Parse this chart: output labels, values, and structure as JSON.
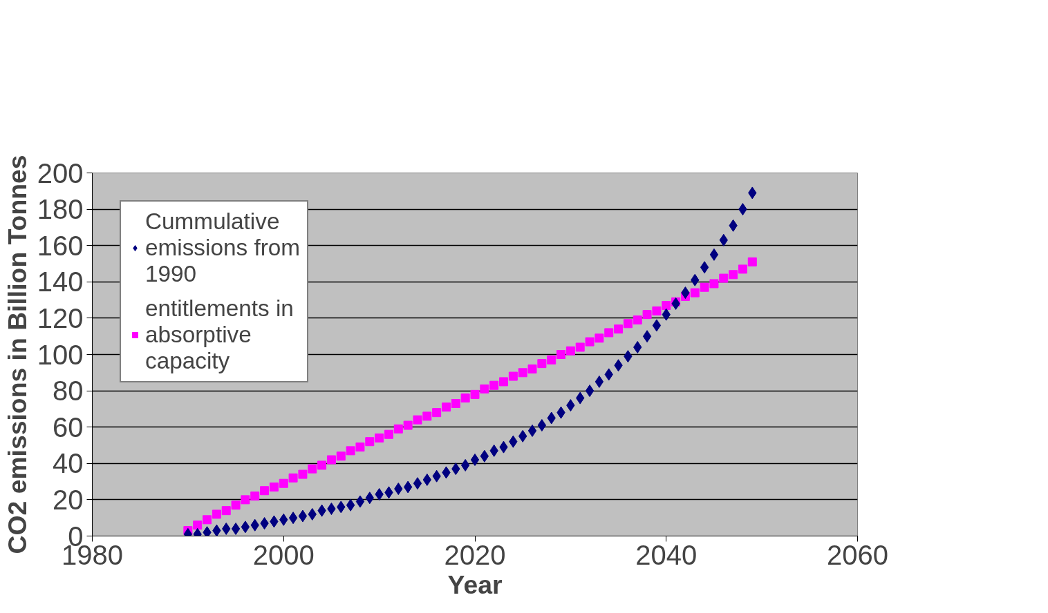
{
  "chart_data": {
    "type": "scatter",
    "xlabel": "Year",
    "ylabel": "CO2 emissions in Billion Tonnes",
    "x": [
      1990,
      1991,
      1992,
      1993,
      1994,
      1995,
      1996,
      1997,
      1998,
      1999,
      2000,
      2001,
      2002,
      2003,
      2004,
      2005,
      2006,
      2007,
      2008,
      2009,
      2010,
      2011,
      2012,
      2013,
      2014,
      2015,
      2016,
      2017,
      2018,
      2019,
      2020,
      2021,
      2022,
      2023,
      2024,
      2025,
      2026,
      2027,
      2028,
      2029,
      2030,
      2031,
      2032,
      2033,
      2034,
      2035,
      2036,
      2037,
      2038,
      2039,
      2040,
      2041,
      2042,
      2043,
      2044,
      2045,
      2046,
      2047,
      2048,
      2049
    ],
    "series": [
      {
        "name": "Cummulative emissions from 1990",
        "color": "#000080",
        "marker": "diamond",
        "values": [
          1,
          1,
          2,
          3,
          4,
          4,
          5,
          6,
          7,
          8,
          9,
          10,
          11,
          12,
          14,
          15,
          16,
          17,
          19,
          21,
          23,
          24,
          26,
          27,
          29,
          31,
          33,
          35,
          37,
          39,
          42,
          44,
          47,
          49,
          52,
          55,
          58,
          61,
          65,
          68,
          72,
          76,
          80,
          85,
          89,
          94,
          99,
          104,
          110,
          116,
          122,
          128,
          134,
          141,
          148,
          155,
          163,
          171,
          180,
          189
        ]
      },
      {
        "name": "entitlements in absorptive capacity",
        "color": "#ff00ff",
        "marker": "square",
        "values": [
          3,
          6,
          9,
          12,
          14,
          17,
          20,
          22,
          25,
          27,
          29,
          32,
          34,
          37,
          39,
          42,
          44,
          47,
          49,
          52,
          54,
          56,
          59,
          61,
          64,
          66,
          68,
          71,
          73,
          76,
          78,
          81,
          83,
          85,
          88,
          90,
          92,
          95,
          97,
          100,
          102,
          104,
          107,
          109,
          112,
          114,
          117,
          119,
          122,
          124,
          127,
          129,
          132,
          134,
          137,
          139,
          142,
          144,
          147,
          151
        ]
      }
    ],
    "xlim": [
      1980,
      2060
    ],
    "xticks": [
      1980,
      2000,
      2020,
      2040,
      2060
    ],
    "ylim": [
      0,
      200
    ],
    "yticks": [
      0,
      20,
      40,
      60,
      80,
      100,
      120,
      140,
      160,
      180,
      200
    ],
    "grid": "y",
    "legend": "top left"
  }
}
